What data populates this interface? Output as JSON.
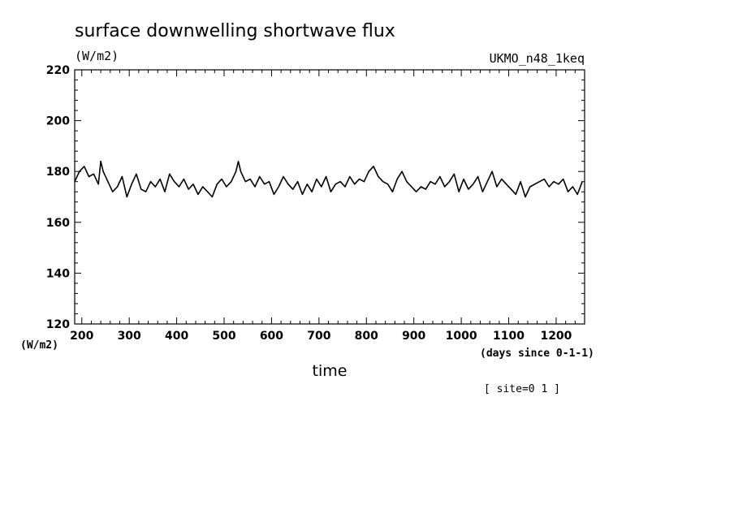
{
  "chart_data": {
    "type": "line",
    "title": "surface downwelling shortwave flux",
    "units_label": "(W/m2)",
    "model": "UKMO_n48_1keq",
    "ylabel": "(W/m2)",
    "xlabel": "time",
    "x_units": "(days since 0-1-1)",
    "site_note": "[ site=0 1 ]",
    "xlim": [
      185,
      1260
    ],
    "ylim": [
      120,
      220
    ],
    "x_ticks": [
      200,
      300,
      400,
      500,
      600,
      700,
      800,
      900,
      1000,
      1100,
      1200
    ],
    "x_tick_labels": [
      "200",
      "300",
      "400",
      "500",
      "600",
      "700",
      "800",
      "900",
      "1000",
      "1100",
      "1200"
    ],
    "y_ticks": [
      120,
      140,
      160,
      180,
      200,
      220
    ],
    "y_tick_labels": [
      "120",
      "140",
      "160",
      "180",
      "200",
      "220"
    ],
    "series": [
      {
        "color": "#000000",
        "x": [
          185,
          195,
          205,
          215,
          225,
          235,
          240,
          245,
          255,
          265,
          275,
          285,
          295,
          305,
          315,
          325,
          335,
          345,
          355,
          365,
          375,
          385,
          395,
          405,
          415,
          425,
          435,
          445,
          455,
          465,
          475,
          485,
          495,
          505,
          515,
          525,
          530,
          535,
          545,
          555,
          565,
          575,
          585,
          595,
          605,
          615,
          625,
          635,
          645,
          655,
          665,
          675,
          685,
          695,
          705,
          715,
          725,
          735,
          745,
          755,
          765,
          775,
          785,
          795,
          805,
          815,
          825,
          835,
          845,
          855,
          865,
          875,
          885,
          895,
          905,
          915,
          925,
          935,
          945,
          955,
          965,
          975,
          985,
          995,
          1005,
          1015,
          1025,
          1035,
          1045,
          1055,
          1065,
          1075,
          1085,
          1095,
          1105,
          1115,
          1125,
          1135,
          1145,
          1155,
          1165,
          1175,
          1185,
          1195,
          1205,
          1215,
          1225,
          1235,
          1245,
          1255
        ],
        "y": [
          176,
          180,
          182,
          178,
          179,
          175,
          184,
          180,
          176,
          172,
          174,
          178,
          170,
          175,
          179,
          173,
          172,
          176,
          174,
          177,
          172,
          179,
          176,
          174,
          177,
          173,
          175,
          171,
          174,
          172,
          170,
          175,
          177,
          174,
          176,
          180,
          184,
          180,
          176,
          177,
          174,
          178,
          175,
          176,
          171,
          174,
          178,
          175,
          173,
          176,
          171,
          175,
          172,
          177,
          174,
          178,
          172,
          175,
          176,
          174,
          178,
          175,
          177,
          176,
          180,
          182,
          178,
          176,
          175,
          172,
          177,
          180,
          176,
          174,
          172,
          174,
          173,
          176,
          175,
          178,
          174,
          176,
          179,
          172,
          177,
          173,
          175,
          178,
          172,
          176,
          180,
          174,
          177,
          175,
          173,
          171,
          176,
          170,
          174,
          175,
          176,
          177,
          174,
          176,
          175,
          177,
          172,
          174,
          171,
          176
        ]
      }
    ]
  }
}
